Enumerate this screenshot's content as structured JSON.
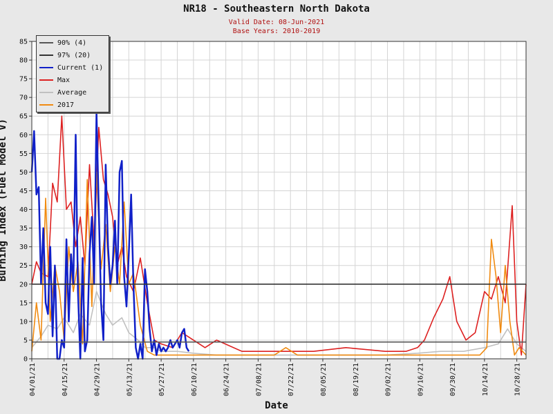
{
  "header": {
    "title": "NR18 - Southeastern North Dakota",
    "valid_date": "Valid Date: 08-Jun-2021",
    "base_years": "Base Years: 2010-2019"
  },
  "colors": {
    "background": "#e8e8e8",
    "plot_background": "#ffffff",
    "grid": "#d4d4d4",
    "subtitle": "#b01010"
  },
  "chart_data": {
    "type": "line",
    "xlabel": "Date",
    "ylabel": "Burning Index (Fuel Model V)",
    "ylim": [
      0,
      85
    ],
    "yticks": [
      0,
      5,
      10,
      15,
      20,
      25,
      30,
      35,
      40,
      45,
      50,
      55,
      60,
      65,
      70,
      75,
      80,
      85
    ],
    "xlim": [
      "04/01/21",
      "11/01/21"
    ],
    "grid": true,
    "legend_position": "top-left",
    "x_tick_labels": [
      "04/01/21",
      "04/15/21",
      "04/29/21",
      "05/13/21",
      "05/27/21",
      "06/10/21",
      "06/24/21",
      "07/08/21",
      "07/22/21",
      "08/05/21",
      "08/19/21",
      "09/02/21",
      "09/16/21",
      "09/30/21",
      "10/14/21",
      "10/28/21"
    ],
    "thresholds": [
      {
        "name": "90% (4)",
        "value": 4.5,
        "color": "#555555"
      },
      {
        "name": "97% (20)",
        "value": 20,
        "color": "#333333"
      }
    ],
    "series": [
      {
        "name": "Average",
        "color": "#c0c0c0",
        "x": [
          "04/01/21",
          "04/05/21",
          "04/08/21",
          "04/12/21",
          "04/15/21",
          "04/19/21",
          "04/22/21",
          "04/26/21",
          "04/29/21",
          "05/03/21",
          "05/06/21",
          "05/10/21",
          "05/13/21",
          "05/17/21",
          "05/20/21",
          "05/24/21",
          "05/27/21",
          "06/03/21",
          "06/10/21",
          "06/20/21",
          "07/01/21",
          "07/15/21",
          "08/01/21",
          "08/15/21",
          "09/01/21",
          "09/15/21",
          "09/25/21",
          "10/05/21",
          "10/14/21",
          "10/20/21",
          "10/24/21",
          "10/28/21",
          "11/01/21"
        ],
        "y": [
          3,
          6,
          9,
          8,
          11,
          7,
          12,
          9,
          18,
          12,
          9,
          11,
          7,
          5,
          3,
          3,
          2,
          2,
          1.5,
          1,
          1,
          1,
          1,
          1,
          1,
          1.5,
          2,
          2,
          3,
          4,
          8,
          4,
          2
        ]
      },
      {
        "name": "Max",
        "color": "#dd2020",
        "x": [
          "04/01/21",
          "04/03/21",
          "04/05/21",
          "04/08/21",
          "04/10/21",
          "04/12/21",
          "04/14/21",
          "04/16/21",
          "04/18/21",
          "04/20/21",
          "04/22/21",
          "04/24/21",
          "04/26/21",
          "04/28/21",
          "04/30/21",
          "05/02/21",
          "05/04/21",
          "05/06/21",
          "05/08/21",
          "05/10/21",
          "05/12/21",
          "05/15/21",
          "05/18/21",
          "05/21/21",
          "05/24/21",
          "05/27/21",
          "06/01/21",
          "06/05/21",
          "06/10/21",
          "06/15/21",
          "06/20/21",
          "07/01/21",
          "07/15/21",
          "08/01/21",
          "08/15/21",
          "09/01/21",
          "09/10/21",
          "09/15/21",
          "09/18/21",
          "09/22/21",
          "09/26/21",
          "09/29/21",
          "10/02/21",
          "10/06/21",
          "10/10/21",
          "10/14/21",
          "10/17/21",
          "10/20/21",
          "10/23/21",
          "10/26/21",
          "10/28/21",
          "10/30/21",
          "11/01/21"
        ],
        "y": [
          20,
          26,
          23,
          22,
          47,
          42,
          65,
          40,
          42,
          30,
          38,
          25,
          52,
          31,
          62,
          48,
          44,
          38,
          25,
          30,
          22,
          18,
          27,
          15,
          5,
          4,
          3,
          7,
          5,
          3,
          5,
          2,
          2,
          2,
          3,
          2,
          2,
          3,
          5,
          11,
          16,
          22,
          10,
          5,
          7,
          18,
          16,
          22,
          15,
          41,
          10,
          1,
          20
        ]
      },
      {
        "name": "2017",
        "color": "#f08a10",
        "x": [
          "04/01/21",
          "04/03/21",
          "04/05/21",
          "04/07/21",
          "04/09/21",
          "04/11/21",
          "04/13/21",
          "04/15/21",
          "04/17/21",
          "04/19/21",
          "04/21/21",
          "04/23/21",
          "04/25/21",
          "04/27/21",
          "04/29/21",
          "05/01/21",
          "05/03/21",
          "05/05/21",
          "05/07/21",
          "05/09/21",
          "05/11/21",
          "05/13/21",
          "05/15/21",
          "05/18/21",
          "05/21/21",
          "05/24/21",
          "05/27/21",
          "06/03/21",
          "06/10/21",
          "06/20/21",
          "07/01/21",
          "07/15/21",
          "07/20/21",
          "07/25/21",
          "08/01/21",
          "08/15/21",
          "09/01/21",
          "09/15/21",
          "10/01/21",
          "10/12/21",
          "10/15/21",
          "10/17/21",
          "10/19/21",
          "10/21/21",
          "10/23/21",
          "10/25/21",
          "10/27/21",
          "10/29/21",
          "11/01/21"
        ],
        "y": [
          2,
          15,
          5,
          43,
          10,
          25,
          18,
          5,
          30,
          18,
          26,
          4,
          48,
          14,
          50,
          24,
          36,
          18,
          30,
          20,
          42,
          20,
          23,
          9,
          2,
          1,
          1,
          1,
          1,
          1,
          1,
          1,
          3,
          1,
          1,
          1,
          1,
          1,
          1,
          1,
          3,
          32,
          22,
          7,
          25,
          10,
          1,
          3,
          1
        ]
      },
      {
        "name": "Current (1)",
        "color": "#1020c8",
        "x": [
          "04/01/21",
          "04/02/21",
          "04/03/21",
          "04/04/21",
          "04/05/21",
          "04/06/21",
          "04/07/21",
          "04/08/21",
          "04/09/21",
          "04/10/21",
          "04/11/21",
          "04/12/21",
          "04/13/21",
          "04/14/21",
          "04/15/21",
          "04/16/21",
          "04/17/21",
          "04/18/21",
          "04/19/21",
          "04/20/21",
          "04/21/21",
          "04/22/21",
          "04/23/21",
          "04/24/21",
          "04/25/21",
          "04/26/21",
          "04/27/21",
          "04/28/21",
          "04/29/21",
          "04/30/21",
          "05/01/21",
          "05/02/21",
          "05/03/21",
          "05/04/21",
          "05/05/21",
          "05/06/21",
          "05/07/21",
          "05/08/21",
          "05/09/21",
          "05/10/21",
          "05/11/21",
          "05/12/21",
          "05/13/21",
          "05/14/21",
          "05/15/21",
          "05/16/21",
          "05/17/21",
          "05/18/21",
          "05/19/21",
          "05/20/21",
          "05/21/21",
          "05/22/21",
          "05/23/21",
          "05/24/21",
          "05/25/21",
          "05/26/21",
          "05/27/21",
          "05/28/21",
          "05/29/21",
          "05/30/21",
          "05/31/21",
          "06/01/21",
          "06/02/21",
          "06/03/21",
          "06/04/21",
          "06/05/21",
          "06/06/21",
          "06/07/21",
          "06/08/21"
        ],
        "y": [
          50,
          61,
          44,
          46,
          20,
          35,
          15,
          12,
          30,
          6,
          25,
          0,
          0,
          5,
          3,
          32,
          10,
          28,
          20,
          60,
          18,
          0,
          27,
          2,
          5,
          28,
          38,
          20,
          66,
          40,
          15,
          5,
          52,
          30,
          20,
          25,
          37,
          20,
          50,
          53,
          22,
          14,
          28,
          44,
          20,
          3,
          0,
          4,
          0,
          24,
          18,
          8,
          2,
          5,
          1,
          4,
          2,
          3,
          2,
          3,
          5,
          3,
          4,
          5,
          3,
          7,
          8,
          3,
          2
        ]
      }
    ]
  }
}
